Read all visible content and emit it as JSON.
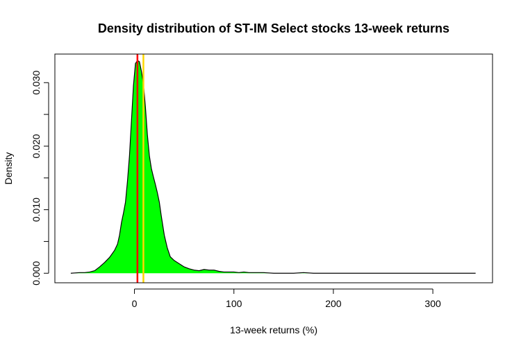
{
  "chart_data": {
    "type": "area",
    "title": "Density distribution of ST-IM Select stocks 13-week returns",
    "xlabel": "13-week returns (%)",
    "ylabel": "Density",
    "xlim": [
      -80,
      360
    ],
    "ylim": [
      -0.0015,
      0.0345
    ],
    "xticks": [
      0,
      100,
      200,
      300
    ],
    "xtick_labels": [
      "0",
      "100",
      "200",
      "300"
    ],
    "yticks": [
      0.0,
      0.005,
      0.01,
      0.015,
      0.02,
      0.025,
      0.03
    ],
    "ytick_labels": [
      "0.000",
      "",
      "0.010",
      "",
      "0.020",
      "",
      "0.030"
    ],
    "grid": false,
    "fill_color": "#00ff00",
    "line_color": "#000000",
    "series": [
      {
        "x": [
          -64,
          -55,
          -50,
          -45,
          -40,
          -35,
          -30,
          -25,
          -20,
          -17,
          -15,
          -13,
          -11,
          -9,
          -7,
          -5,
          -3,
          -1,
          1,
          3,
          5,
          7,
          9,
          11,
          13,
          15,
          17,
          19,
          21,
          23,
          25,
          27,
          30,
          33,
          36,
          40,
          45,
          50,
          55,
          60,
          65,
          70,
          75,
          80,
          85,
          90,
          95,
          100,
          105,
          110,
          115,
          120,
          130,
          140,
          150,
          160,
          170,
          180,
          190,
          200,
          210,
          220,
          230,
          250,
          270,
          290,
          310,
          330,
          343
        ],
        "y": [
          0.0,
          0.0001,
          0.0001,
          0.0002,
          0.0004,
          0.001,
          0.0017,
          0.0025,
          0.0036,
          0.0046,
          0.006,
          0.008,
          0.0095,
          0.0112,
          0.0145,
          0.0185,
          0.024,
          0.0295,
          0.033,
          0.0335,
          0.0333,
          0.0318,
          0.0298,
          0.0262,
          0.0218,
          0.0185,
          0.0165,
          0.0152,
          0.014,
          0.0127,
          0.0112,
          0.009,
          0.006,
          0.004,
          0.0026,
          0.002,
          0.0015,
          0.001,
          0.0007,
          0.0005,
          0.0004,
          0.0006,
          0.0005,
          0.0005,
          0.0003,
          0.0002,
          0.0002,
          0.0002,
          0.0001,
          0.0002,
          0.0001,
          0.0001,
          0.0001,
          0.0,
          0.0,
          0.0,
          0.0001,
          0.0,
          0.0,
          0.0,
          0.0,
          0.0,
          0.0,
          0.0,
          0.0,
          0.0,
          0.0,
          0.0,
          0.0
        ]
      }
    ],
    "vlines": [
      {
        "x": 3,
        "color": "#ff0000"
      },
      {
        "x": 9,
        "color": "#ffd700"
      }
    ]
  }
}
